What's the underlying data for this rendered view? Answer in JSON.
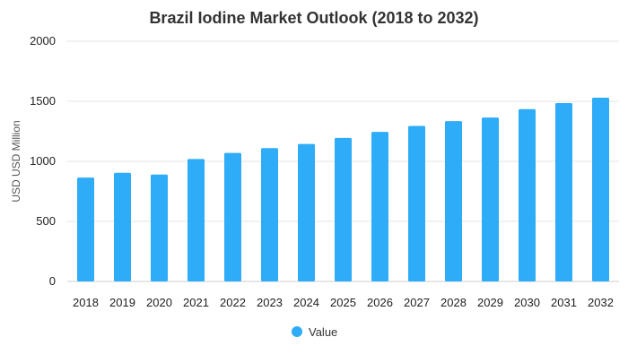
{
  "chart_data": {
    "type": "bar",
    "title": "Brazil Iodine Market Outlook (2018 to 2032)",
    "xlabel": "",
    "ylabel": "USD USD Million",
    "categories": [
      "2018",
      "2019",
      "2020",
      "2021",
      "2022",
      "2023",
      "2024",
      "2025",
      "2026",
      "2027",
      "2028",
      "2029",
      "2030",
      "2031",
      "2032"
    ],
    "series": [
      {
        "name": "Value",
        "values": [
          865,
          905,
          890,
          1020,
          1070,
          1110,
          1145,
          1195,
          1245,
          1295,
          1335,
          1365,
          1435,
          1485,
          1530
        ]
      }
    ],
    "ylim": [
      0,
      2000
    ],
    "yticks": [
      0,
      500,
      1000,
      1500,
      2000
    ],
    "grid": true,
    "legend_position": "bottom-center",
    "bar_color": "#2eacf7"
  }
}
